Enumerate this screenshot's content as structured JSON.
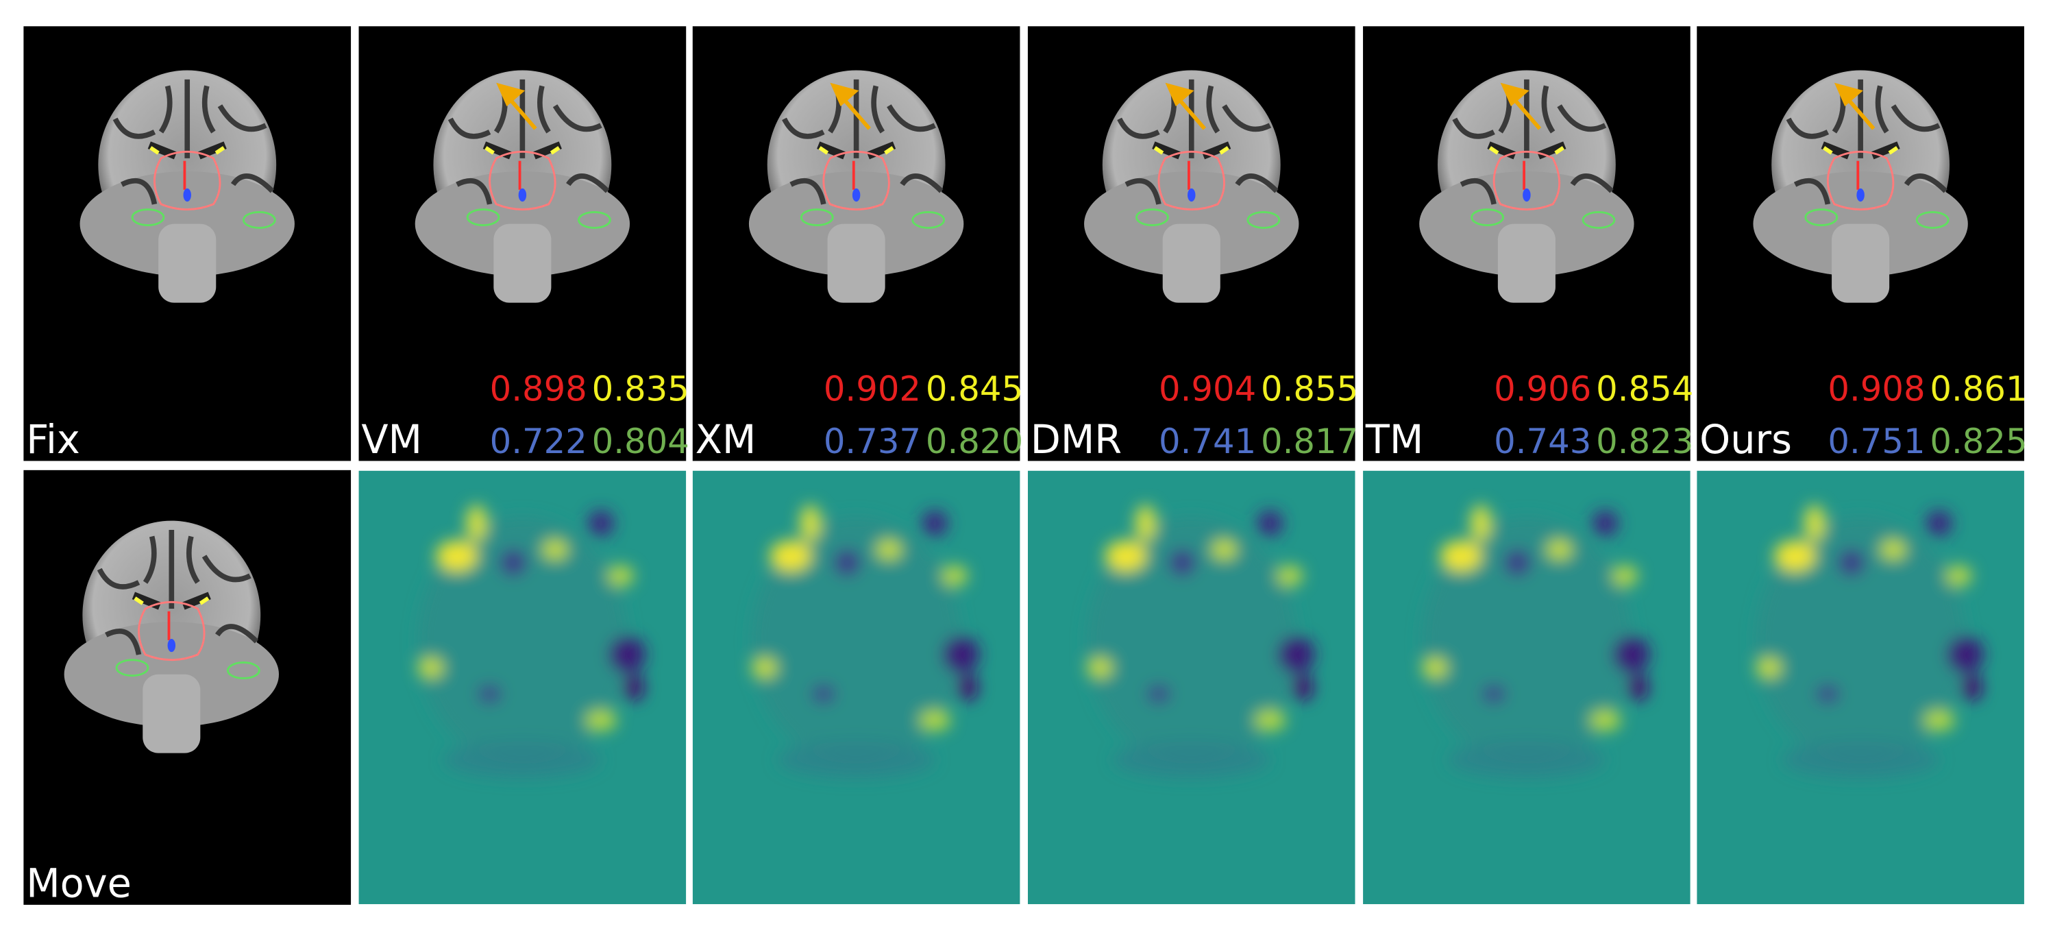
{
  "top_row": [
    {
      "label": "Fix"
    },
    {
      "label": "VM",
      "scores": [
        "0.898",
        "0.835",
        "0.722",
        "0.804"
      ]
    },
    {
      "label": "XM",
      "scores": [
        "0.902",
        "0.845",
        "0.737",
        "0.820"
      ]
    },
    {
      "label": "DMR",
      "scores": [
        "0.904",
        "0.855",
        "0.741",
        "0.817"
      ]
    },
    {
      "label": "TM",
      "scores": [
        "0.906",
        "0.854",
        "0.743",
        "0.823"
      ]
    },
    {
      "label": "Ours",
      "scores": [
        "0.908",
        "0.861",
        "0.751",
        "0.825"
      ]
    }
  ],
  "bottom_row": {
    "label": "Move"
  }
}
